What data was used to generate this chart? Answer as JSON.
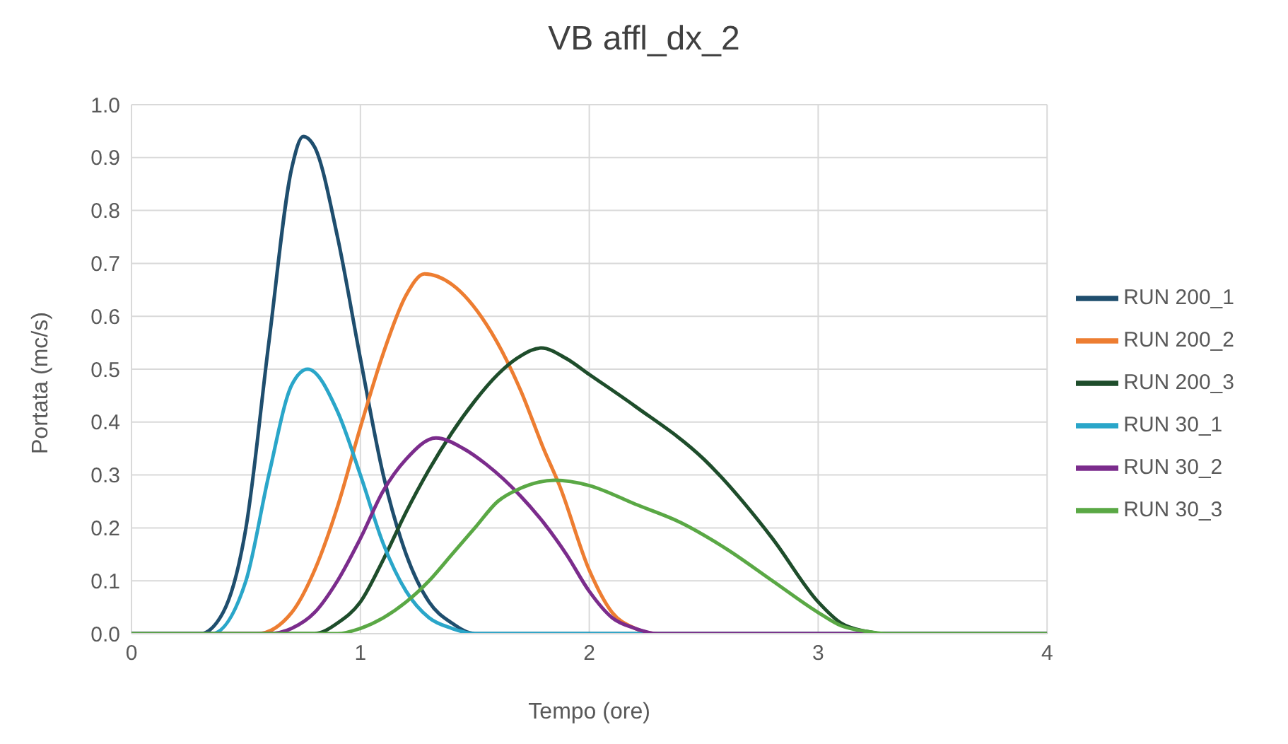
{
  "chart_data": {
    "type": "line",
    "title": "VB affl_dx_2",
    "xlabel": "Tempo (ore)",
    "ylabel": "Portata (mc/s)",
    "xlim": [
      0,
      4
    ],
    "xticks": [
      0,
      1,
      2,
      3,
      4
    ],
    "ylim": [
      0,
      1
    ],
    "yticks": [
      {
        "value": 0,
        "label": "0.0"
      },
      0.1,
      0.2,
      0.3,
      0.4,
      0.5,
      0.6,
      0.7,
      0.8,
      0.9,
      {
        "value": 1,
        "label": "1.0"
      }
    ],
    "grid": true,
    "legend": "right",
    "marker": "none",
    "line_style": "solid",
    "series": [
      {
        "name": "RUN 200_1",
        "color": "#1f4e6e",
        "x": [
          0,
          0.3,
          0.4,
          0.5,
          0.6,
          0.7,
          0.75,
          0.8,
          0.9,
          1.0,
          1.1,
          1.2,
          1.3,
          1.4,
          1.5,
          4
        ],
        "values": [
          0,
          0,
          0.04,
          0.2,
          0.55,
          0.88,
          0.94,
          0.92,
          0.75,
          0.52,
          0.3,
          0.15,
          0.06,
          0.02,
          0,
          0
        ]
      },
      {
        "name": "RUN 200_2",
        "color": "#ed7d31",
        "x": [
          0,
          0.55,
          0.7,
          0.8,
          0.9,
          1.0,
          1.1,
          1.2,
          1.28,
          1.4,
          1.55,
          1.7,
          1.8,
          1.87,
          2.0,
          2.1,
          2.2,
          2.3,
          4
        ],
        "values": [
          0,
          0,
          0.04,
          0.12,
          0.24,
          0.39,
          0.53,
          0.64,
          0.68,
          0.66,
          0.585,
          0.46,
          0.35,
          0.28,
          0.12,
          0.04,
          0.01,
          0,
          0
        ]
      },
      {
        "name": "RUN 200_3",
        "color": "#1e4d2b",
        "x": [
          0,
          0.8,
          0.9,
          1.0,
          1.1,
          1.2,
          1.3,
          1.4,
          1.5,
          1.6,
          1.7,
          1.79,
          1.9,
          2.0,
          2.2,
          2.5,
          2.8,
          3.0,
          3.1,
          3.2,
          3.3,
          4
        ],
        "values": [
          0,
          0,
          0.02,
          0.06,
          0.14,
          0.23,
          0.31,
          0.38,
          0.44,
          0.49,
          0.525,
          0.54,
          0.52,
          0.49,
          0.43,
          0.33,
          0.18,
          0.06,
          0.02,
          0.005,
          0,
          0
        ]
      },
      {
        "name": "RUN 30_1",
        "color": "#2aa6c9",
        "x": [
          0,
          0.35,
          0.5,
          0.6,
          0.7,
          0.77,
          0.9,
          1.0,
          1.1,
          1.2,
          1.3,
          1.4,
          1.5,
          4
        ],
        "values": [
          0,
          0,
          0.1,
          0.3,
          0.47,
          0.5,
          0.42,
          0.3,
          0.17,
          0.08,
          0.03,
          0.01,
          0,
          0
        ]
      },
      {
        "name": "RUN 30_2",
        "color": "#7b2c8c",
        "x": [
          0,
          0.6,
          0.7,
          0.8,
          0.9,
          1.0,
          1.1,
          1.2,
          1.33,
          1.45,
          1.55,
          1.7,
          1.8,
          1.9,
          2.0,
          2.1,
          2.2,
          2.3,
          4
        ],
        "values": [
          0,
          0,
          0.01,
          0.04,
          0.1,
          0.18,
          0.27,
          0.33,
          0.37,
          0.35,
          0.32,
          0.26,
          0.21,
          0.15,
          0.08,
          0.03,
          0.01,
          0,
          0
        ]
      },
      {
        "name": "RUN 30_3",
        "color": "#5aa845",
        "x": [
          0,
          0.9,
          1.0,
          1.1,
          1.2,
          1.3,
          1.4,
          1.5,
          1.6,
          1.7,
          1.85,
          2.0,
          2.2,
          2.4,
          2.6,
          2.8,
          3.0,
          3.1,
          3.2,
          3.3,
          4
        ],
        "values": [
          0,
          0,
          0.01,
          0.03,
          0.06,
          0.1,
          0.15,
          0.2,
          0.25,
          0.275,
          0.29,
          0.28,
          0.245,
          0.21,
          0.16,
          0.1,
          0.04,
          0.015,
          0.005,
          0,
          0
        ]
      }
    ]
  }
}
